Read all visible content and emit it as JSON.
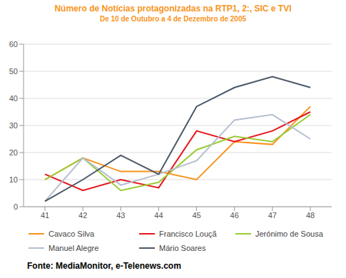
{
  "chart_data": {
    "type": "line",
    "title": "Número de Notícias protagonizadas na RTP1, 2:, SIC e TVI",
    "subtitle": "De 10 de Outubro a 4 de Dezembro de 2005",
    "source": "Fonte: MediaMonitor, e-Telenews.com",
    "categories": [
      "41",
      "42",
      "43",
      "44",
      "45",
      "46",
      "47",
      "48"
    ],
    "series": [
      {
        "name": "Cavaco Silva",
        "color": "#f7941d",
        "values": [
          10,
          18,
          13,
          13,
          10,
          24,
          23,
          37
        ]
      },
      {
        "name": "Francisco Louçã",
        "color": "#e8141b",
        "values": [
          12,
          6,
          10,
          7,
          28,
          24,
          28,
          35
        ]
      },
      {
        "name": "Jerónimo de Sousa",
        "color": "#99cc33",
        "values": [
          10,
          18,
          6,
          9,
          21,
          26,
          24,
          34
        ]
      },
      {
        "name": "Manuel Alegre",
        "color": "#b4bfcf",
        "values": [
          2,
          18,
          8,
          12,
          17,
          32,
          34,
          25
        ]
      },
      {
        "name": "Mário Soares",
        "color": "#4a5868",
        "values": [
          2,
          10,
          19,
          12,
          37,
          44,
          48,
          44
        ]
      }
    ],
    "ylim": [
      0,
      60
    ],
    "yticks": [
      0,
      10,
      20,
      30,
      40,
      50,
      60
    ],
    "grid": true,
    "legend": "bottom"
  }
}
